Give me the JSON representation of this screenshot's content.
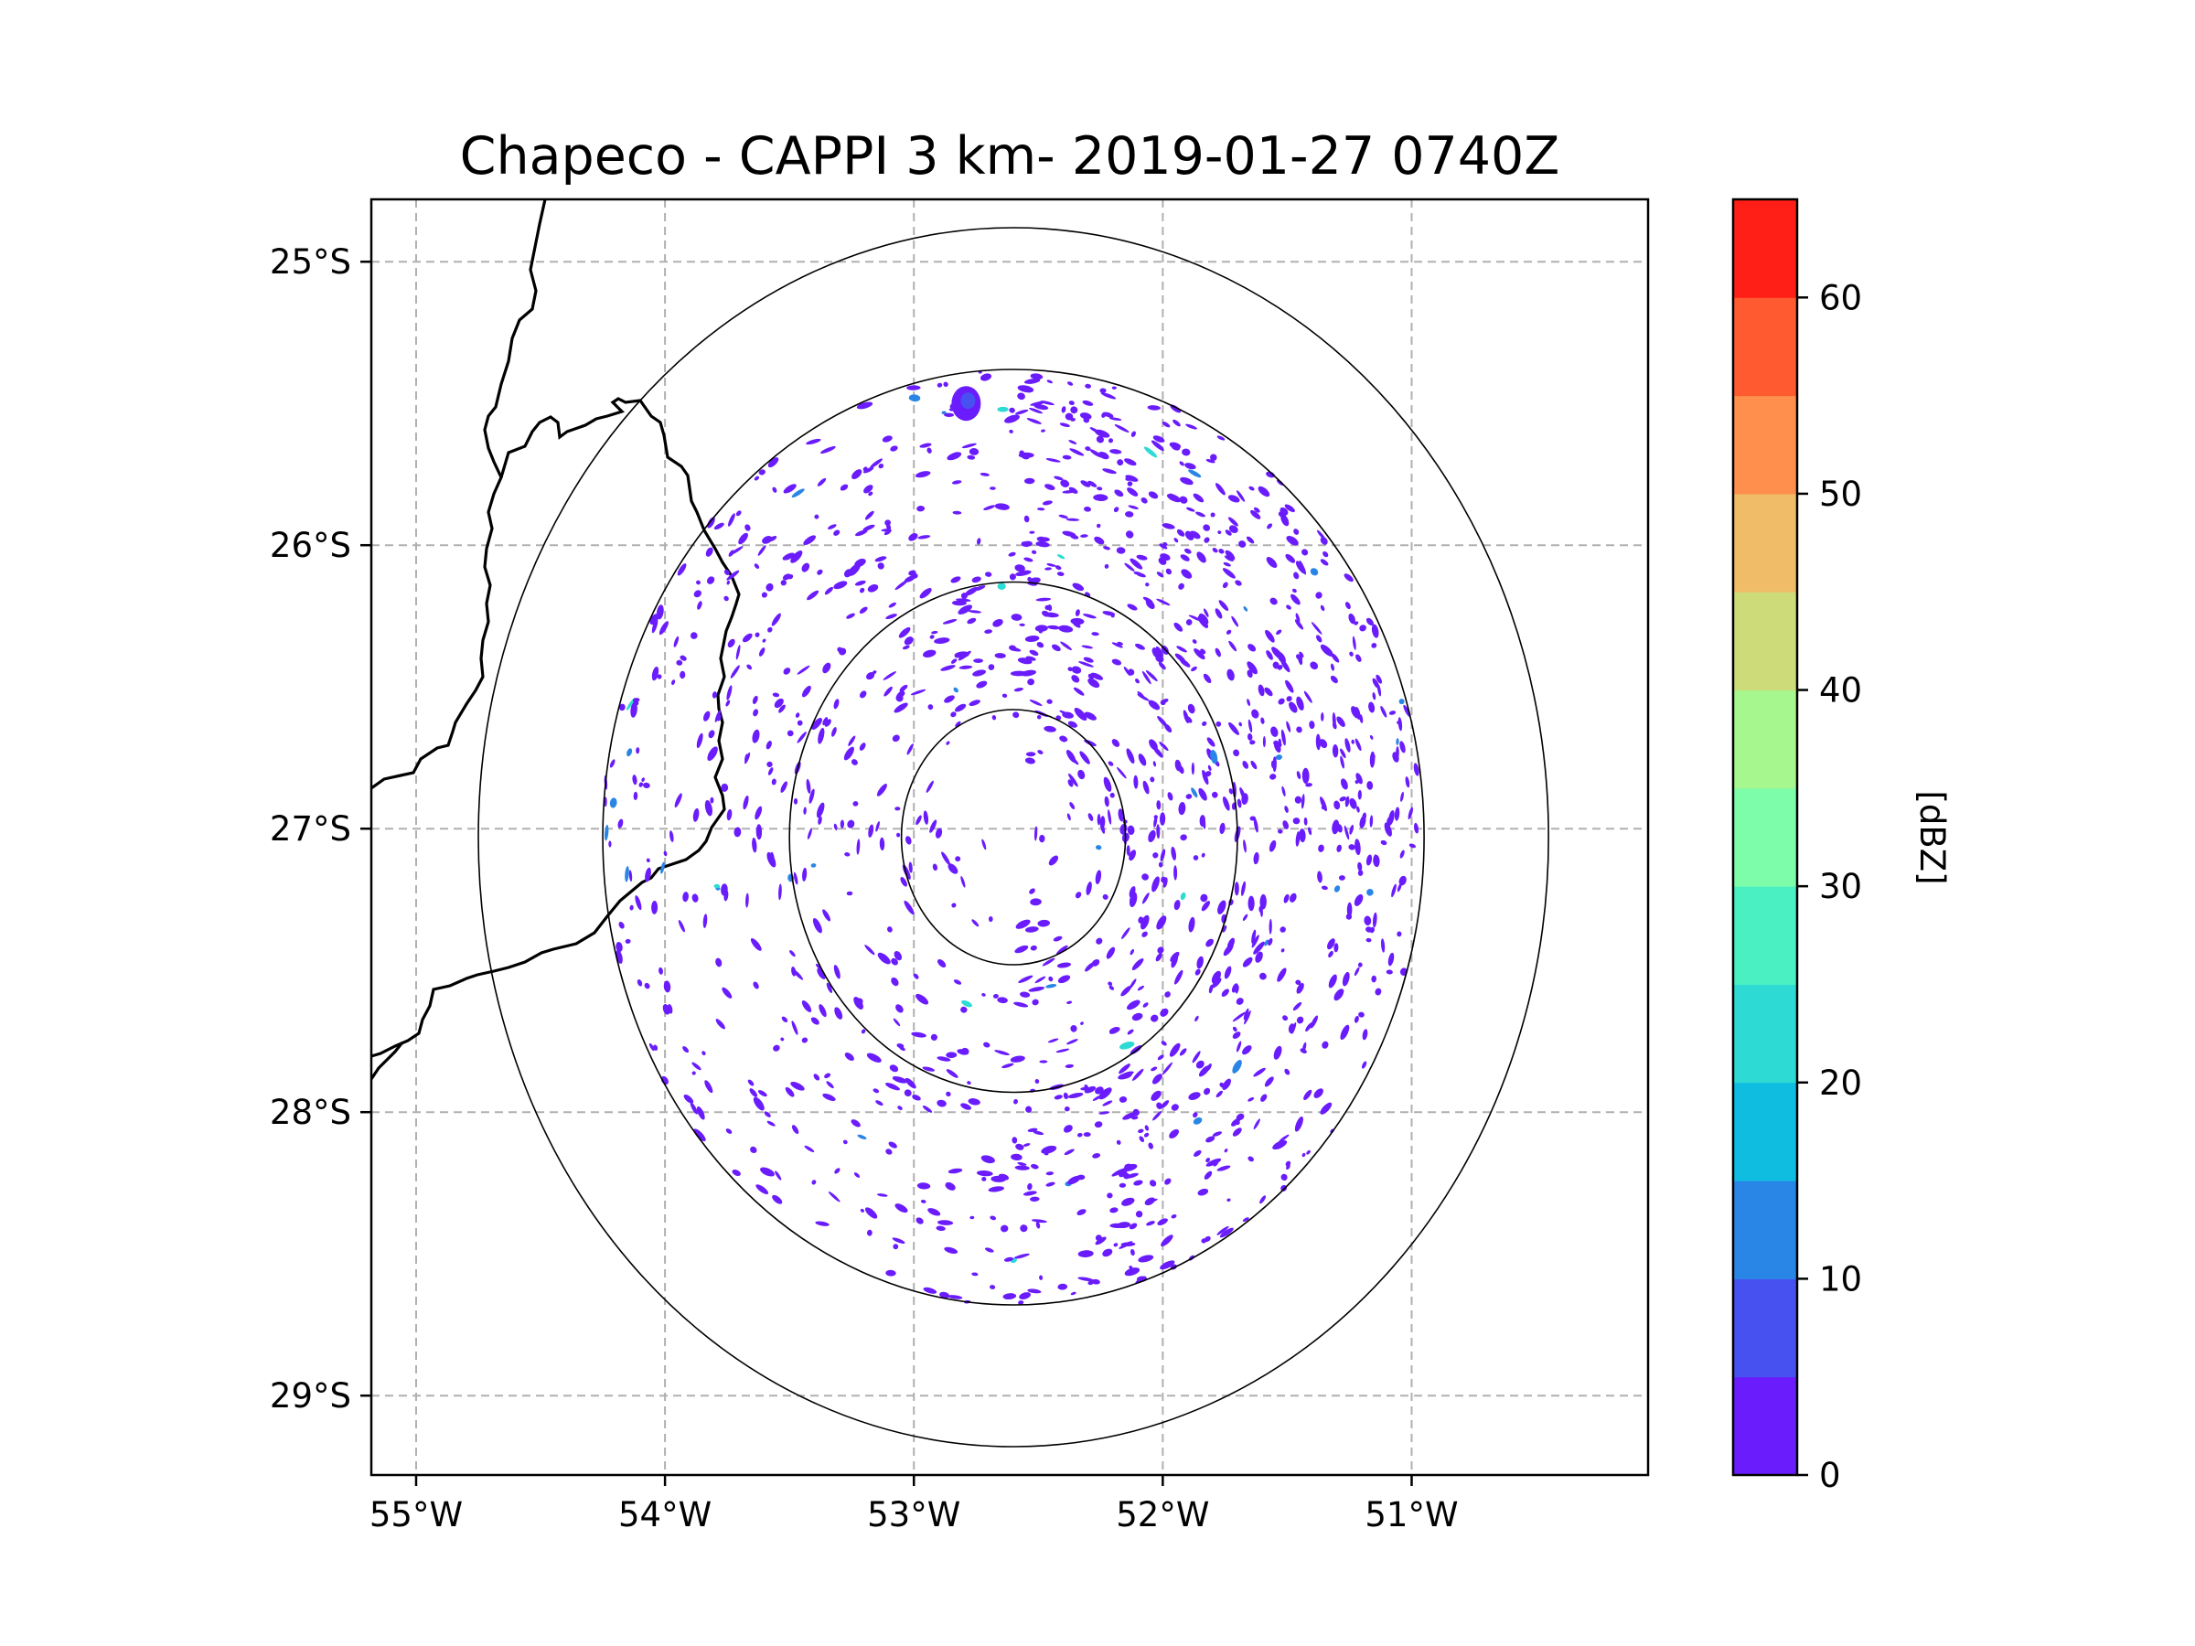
{
  "chart_data": {
    "type": "radar-map",
    "title": "Chapeco - CAPPI 3 km- 2019-01-27 0740Z",
    "radar_site": {
      "lon": -52.6,
      "lat": -27.03
    },
    "extent": {
      "lon": [
        -55.18,
        -50.05
      ],
      "lat": [
        -29.28,
        -24.78
      ]
    },
    "range_rings_deg": [
      0.45,
      0.9,
      1.65,
      2.15
    ],
    "x_ticks": [
      {
        "value": -55,
        "label": "55°W"
      },
      {
        "value": -54,
        "label": "54°W"
      },
      {
        "value": -53,
        "label": "53°W"
      },
      {
        "value": -52,
        "label": "52°W"
      },
      {
        "value": -51,
        "label": "51°W"
      }
    ],
    "y_ticks": [
      {
        "value": -25,
        "label": "25°S"
      },
      {
        "value": -26,
        "label": "26°S"
      },
      {
        "value": -27,
        "label": "27°S"
      },
      {
        "value": -28,
        "label": "28°S"
      },
      {
        "value": -29,
        "label": "29°S"
      }
    ],
    "gridlines": true,
    "colorbar": {
      "label": "[dBZ]",
      "min": 0,
      "max": 65,
      "step": 5,
      "ticks": [
        {
          "value": 0,
          "label": "0"
        },
        {
          "value": 10,
          "label": "10"
        },
        {
          "value": 20,
          "label": "20"
        },
        {
          "value": 30,
          "label": "30"
        },
        {
          "value": 40,
          "label": "40"
        },
        {
          "value": 50,
          "label": "50"
        },
        {
          "value": 60,
          "label": "60"
        }
      ],
      "colors": [
        "#6a1cfc",
        "#4751f0",
        "#2a86e6",
        "#0fbde0",
        "#2ddbd4",
        "#4bf0c2",
        "#7dfca9",
        "#a5f78e",
        "#cddc78",
        "#f1bc68",
        "#fe8f4c",
        "#ff5a30",
        "#ff1f17"
      ]
    },
    "echo_color_min": "#6a1cfc",
    "echo_color_alt": "#2a86e6",
    "echo_color_hi": "#2ddbd4",
    "echo_intensity_note": "scattered weak returns mostly 0–10 dBZ, densest north-east of the radar"
  }
}
